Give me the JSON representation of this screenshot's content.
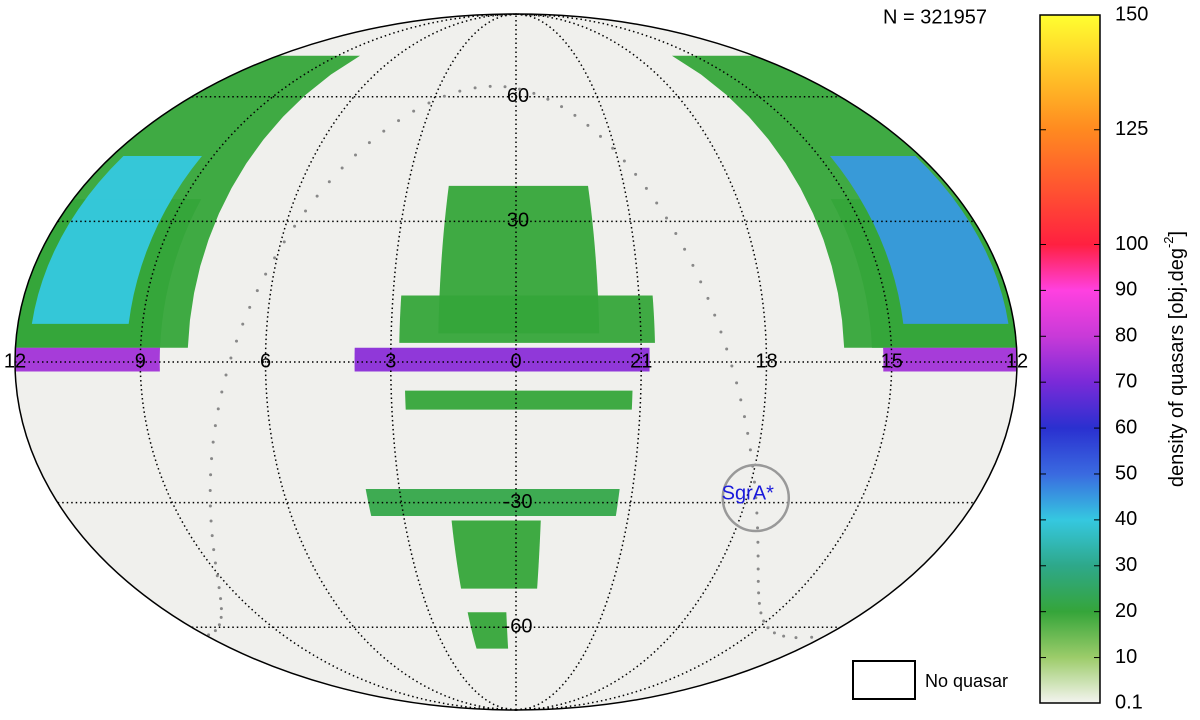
{
  "chart_data": {
    "type": "skymap",
    "projection": "mollweide",
    "title": "N =  321957",
    "ra_labels": [
      12,
      9,
      6,
      3,
      0,
      21,
      18,
      15,
      12
    ],
    "dec_labels": [
      60,
      30,
      -30,
      -60
    ],
    "annotation": "SgrA*",
    "legend": "No quasar",
    "regions": [
      {
        "name": "north-west-band",
        "value": 20
      },
      {
        "name": "north-west-core",
        "value": 40
      },
      {
        "name": "north-east-band",
        "value": 20
      },
      {
        "name": "north-east-core",
        "value": 45
      },
      {
        "name": "center-blob",
        "value": 20
      },
      {
        "name": "center-ring",
        "value": 20
      },
      {
        "name": "south-stripe",
        "value": 22
      },
      {
        "name": "south-blob",
        "value": 20
      },
      {
        "name": "equator-west",
        "value": 75
      },
      {
        "name": "equator-center",
        "value": 72
      },
      {
        "name": "equator-east",
        "value": 75
      }
    ],
    "colorbar": {
      "clim": [
        0.1,
        150
      ],
      "ticks": [
        0.1,
        10,
        20,
        30,
        40,
        50,
        60,
        70,
        80,
        90,
        100,
        125,
        150
      ],
      "colors": [
        "#f4f4f0",
        "#9ccc6a",
        "#35a53a",
        "#2ea88a",
        "#35c8e0",
        "#3a6ae0",
        "#2a30d0",
        "#7a2ad8",
        "#c83ad8",
        "#ff40e0",
        "#ff2040",
        "#ff8a20",
        "#ffff30"
      ],
      "label": "density of quasars [obj.deg",
      "label_sup": "-2",
      "label_end": "]"
    }
  }
}
